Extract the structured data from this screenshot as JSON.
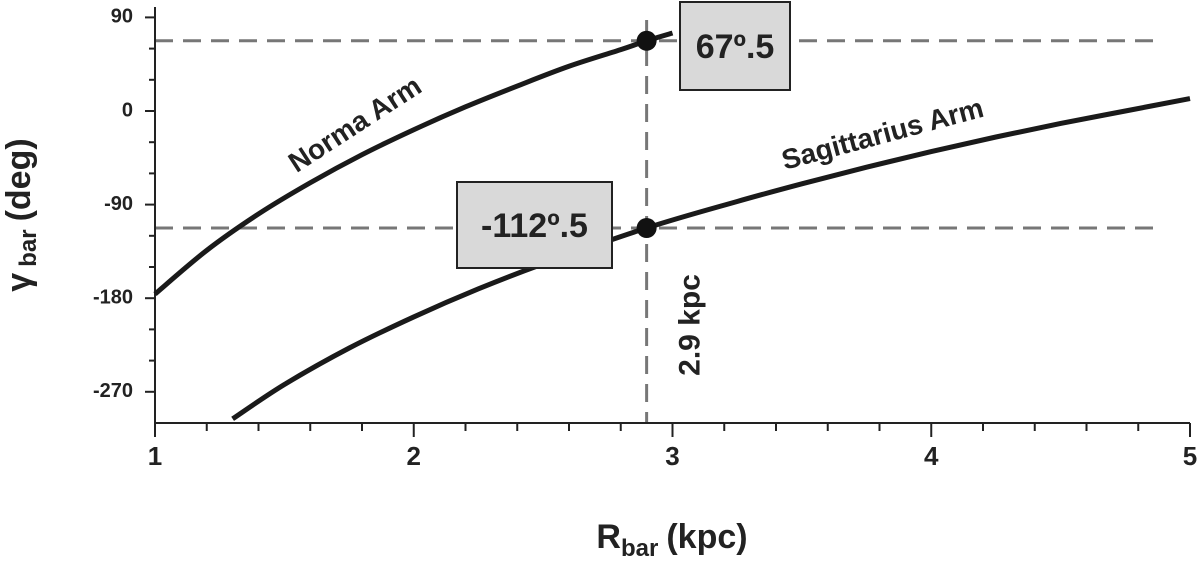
{
  "chart_data": {
    "type": "line",
    "xlabel": {
      "main": "R",
      "sub": "bar",
      "unit": "(kpc)"
    },
    "ylabel": {
      "main": "γ",
      "sub": "bar",
      "unit": "(deg)"
    },
    "xlim": [
      1,
      5
    ],
    "ylim": [
      -300,
      100
    ],
    "xticks": [
      1,
      2,
      3,
      4,
      5
    ],
    "yticks": [
      90,
      0,
      -90,
      -180,
      -270
    ],
    "xminorticks": [
      1.2,
      1.4,
      1.6,
      1.8,
      2.2,
      2.4,
      2.6,
      2.8,
      3.2,
      3.4,
      3.6,
      3.8,
      4.2,
      4.4,
      4.6,
      4.8
    ],
    "yminorticks": [
      60,
      30,
      -30,
      -60,
      -120,
      -150,
      -210,
      -240
    ],
    "series": [
      {
        "name": "Norma Arm",
        "color": "#1a1a1a",
        "x": [
          1,
          1.2,
          1.4,
          1.6,
          1.8,
          2.0,
          2.2,
          2.4,
          2.6,
          2.8,
          2.9,
          3.0
        ],
        "values": [
          -176,
          -134,
          -99,
          -69,
          -42,
          -18,
          4,
          24,
          43,
          59,
          67.5,
          75
        ]
      },
      {
        "name": "Sagittarius Arm",
        "color": "#1a1a1a",
        "x": [
          1.3,
          1.5,
          1.75,
          2,
          2.25,
          2.5,
          2.9,
          3.25,
          3.5,
          3.75,
          4,
          4.25,
          4.5,
          4.75,
          5
        ],
        "values": [
          -296,
          -263,
          -228,
          -198,
          -171,
          -147,
          -112.5,
          -87,
          -70,
          -54,
          -39,
          -25,
          -12,
          0,
          12
        ]
      }
    ],
    "points": [
      {
        "x": 2.9,
        "y": 67.5,
        "label": "67º.5"
      },
      {
        "x": 2.9,
        "y": -112.5,
        "label": "-112º.5"
      }
    ],
    "vline": {
      "x": 2.9,
      "label": "2.9 kpc"
    },
    "hlines": [
      67.5,
      -112.5
    ]
  }
}
